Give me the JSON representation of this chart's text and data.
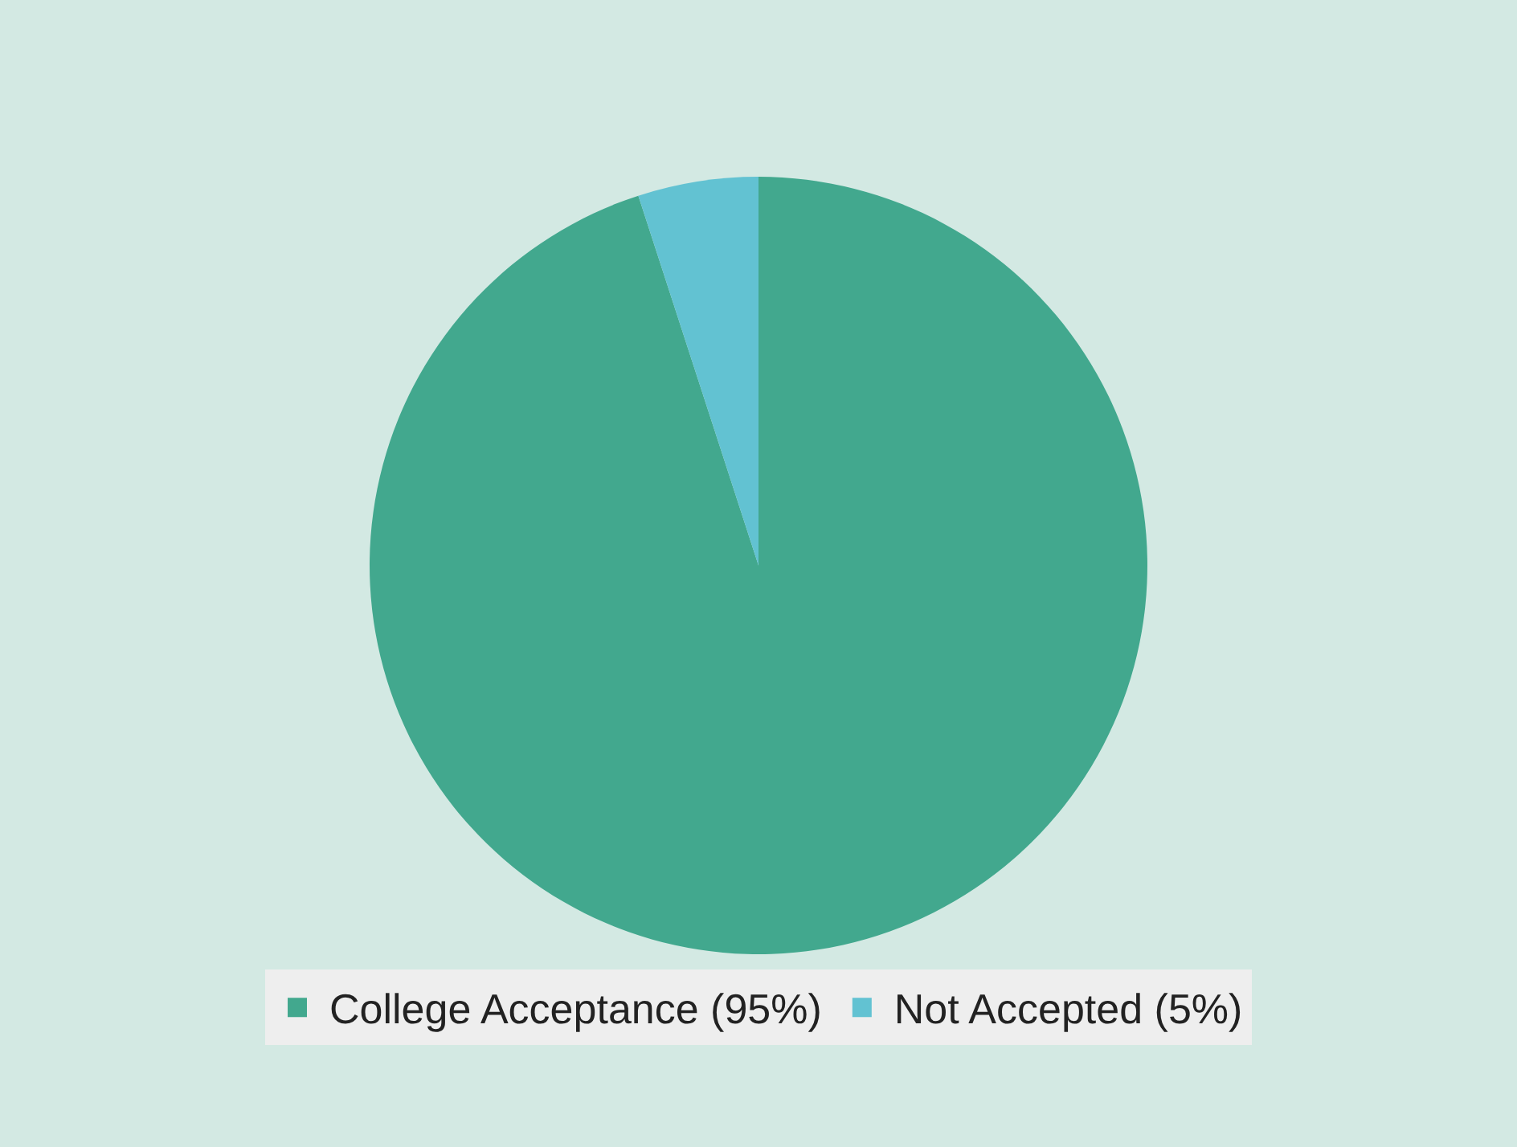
{
  "chart_data": {
    "type": "pie",
    "categories": [
      "College Acceptance (95%)",
      "Not Accepted (5%)"
    ],
    "values": [
      95,
      5
    ],
    "colors": [
      "#42a88e",
      "#62c2d2"
    ],
    "legend": "bottom"
  }
}
